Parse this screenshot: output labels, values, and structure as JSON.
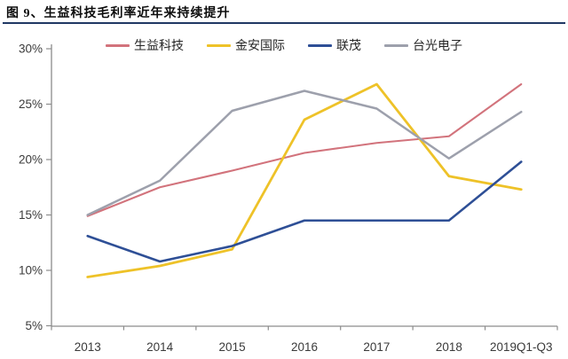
{
  "header": {
    "title": "图 9、生益科技毛利率近年来持续提升",
    "rule_color": "#203864"
  },
  "chart_data": {
    "type": "line",
    "title": "生益科技毛利率近年来持续提升",
    "categories": [
      "2013",
      "2014",
      "2015",
      "2016",
      "2017",
      "2018",
      "2019Q1-Q3"
    ],
    "series": [
      {
        "name": "生益科技",
        "color": "#d2737c",
        "stroke_width": 2.1,
        "values": [
          14.9,
          17.5,
          19.0,
          20.6,
          21.5,
          22.1,
          26.8
        ]
      },
      {
        "name": "金安国际",
        "color": "#eec228",
        "stroke_width": 2.8,
        "values": [
          9.4,
          10.4,
          11.9,
          23.6,
          26.8,
          18.5,
          17.3
        ]
      },
      {
        "name": "联茂",
        "color": "#2e4f96",
        "stroke_width": 2.6,
        "values": [
          13.1,
          10.8,
          12.2,
          14.5,
          14.5,
          14.5,
          19.8
        ]
      },
      {
        "name": "台光电子",
        "color": "#9da0ac",
        "stroke_width": 2.5,
        "values": [
          15.0,
          18.1,
          24.4,
          26.2,
          24.6,
          20.1,
          24.3
        ]
      }
    ],
    "xlabel": "",
    "ylabel": "",
    "ylim": [
      5,
      30
    ],
    "y_ticks": [
      30,
      25,
      20,
      15,
      10,
      5
    ],
    "y_tick_labels": [
      "30%",
      "25%",
      "20%",
      "15%",
      "10%",
      "5%"
    ],
    "grid": "off",
    "legend_position": "top",
    "axis_color": "#8c8c8c",
    "tick_label_color": "#3a3a3a"
  }
}
